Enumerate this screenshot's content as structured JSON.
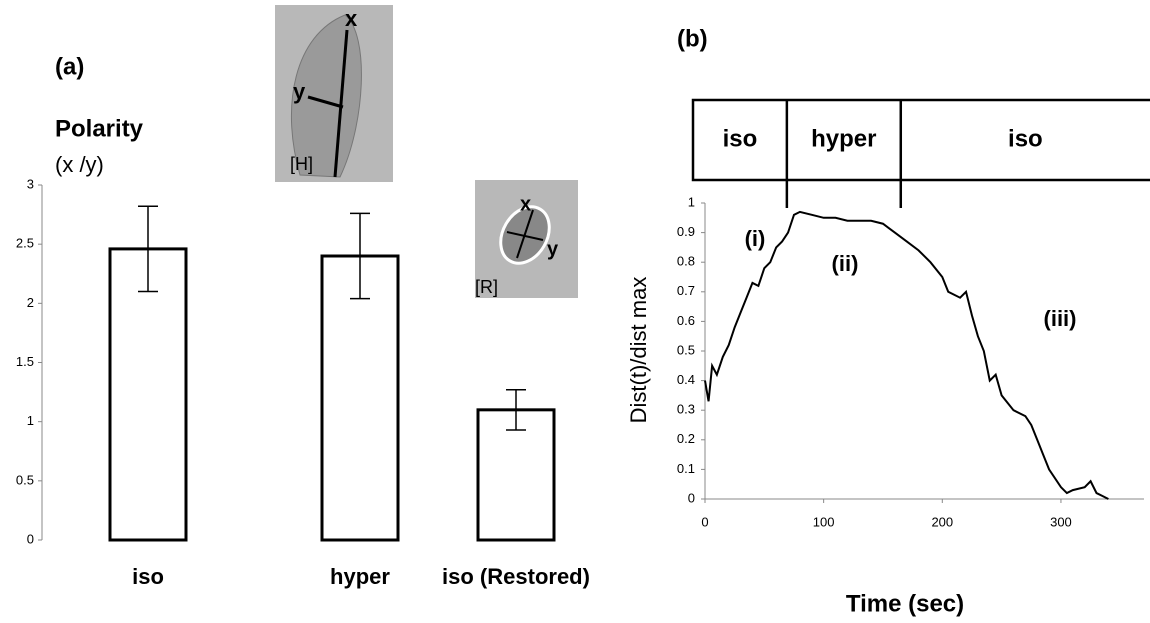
{
  "chart_data": [
    {
      "type": "bar",
      "title": "(a)",
      "ylabel": "Polarity",
      "ylabel_unit": "(x /y)",
      "categories": [
        "iso",
        "hyper",
        "iso (Restored)"
      ],
      "values": [
        2.46,
        2.4,
        1.1
      ],
      "errors": [
        0.36,
        0.36,
        0.17
      ],
      "color": "#ffffff",
      "ylim": [
        0,
        3
      ],
      "yticks": [
        0,
        0.5,
        1,
        1.5,
        2,
        2.5,
        3
      ],
      "insets": [
        {
          "marks": [
            "x",
            "y"
          ],
          "label": "[H]"
        },
        {
          "marks": [
            "x",
            "y"
          ],
          "label": "[R]"
        }
      ]
    },
    {
      "type": "line",
      "title": "(b)",
      "xlabel": "Time (sec)",
      "ylabel": "Dist(t)/dist max",
      "phases": [
        "iso",
        "hyper",
        "iso"
      ],
      "phase_boundaries": [
        69,
        165
      ],
      "annotations": [
        "(i)",
        "(ii)",
        "(iii)"
      ],
      "x": [
        0,
        3,
        6,
        10,
        15,
        20,
        25,
        30,
        35,
        40,
        45,
        50,
        55,
        60,
        65,
        70,
        75,
        80,
        90,
        100,
        110,
        120,
        130,
        140,
        150,
        160,
        170,
        180,
        190,
        200,
        205,
        215,
        220,
        225,
        230,
        235,
        240,
        245,
        250,
        260,
        270,
        275,
        280,
        285,
        290,
        300,
        305,
        310,
        320,
        325,
        330,
        335,
        340
      ],
      "values": [
        0.4,
        0.33,
        0.45,
        0.42,
        0.48,
        0.52,
        0.58,
        0.63,
        0.68,
        0.73,
        0.72,
        0.78,
        0.8,
        0.85,
        0.87,
        0.9,
        0.96,
        0.97,
        0.96,
        0.95,
        0.95,
        0.94,
        0.94,
        0.94,
        0.93,
        0.9,
        0.87,
        0.84,
        0.8,
        0.75,
        0.7,
        0.68,
        0.7,
        0.62,
        0.55,
        0.5,
        0.4,
        0.42,
        0.35,
        0.3,
        0.28,
        0.25,
        0.2,
        0.15,
        0.1,
        0.04,
        0.02,
        0.03,
        0.04,
        0.06,
        0.02,
        0.01,
        0
      ],
      "color": "#000000",
      "xlim": [
        0,
        370
      ],
      "xticks": [
        0,
        100,
        200,
        300
      ],
      "ylim": [
        0,
        1
      ],
      "yticks": [
        0,
        0.1,
        0.2,
        0.3,
        0.4,
        0.5,
        0.6,
        0.7,
        0.8,
        0.9,
        1
      ]
    }
  ]
}
